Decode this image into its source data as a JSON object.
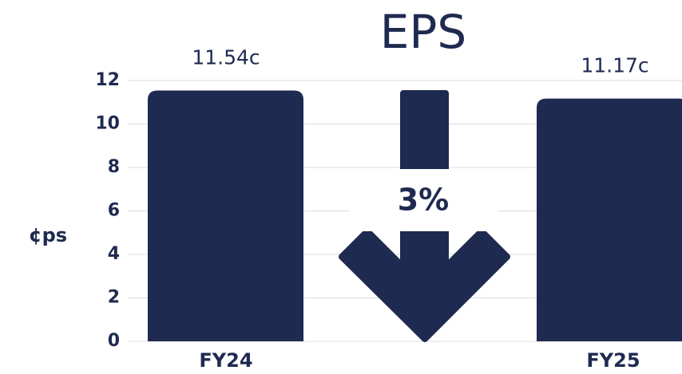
{
  "chart_data": {
    "type": "bar",
    "title": "EPS",
    "y_label": "¢ps",
    "annotation": "3%",
    "categories": [
      "FY24",
      "FY25"
    ],
    "values": [
      11.54,
      11.17
    ],
    "value_labels": [
      "11.54c",
      "11.17c"
    ],
    "color": "#1f2a50",
    "ylim": [
      0,
      12
    ],
    "yticks": [
      0,
      2,
      4,
      6,
      8,
      10,
      12
    ],
    "grid": true
  }
}
